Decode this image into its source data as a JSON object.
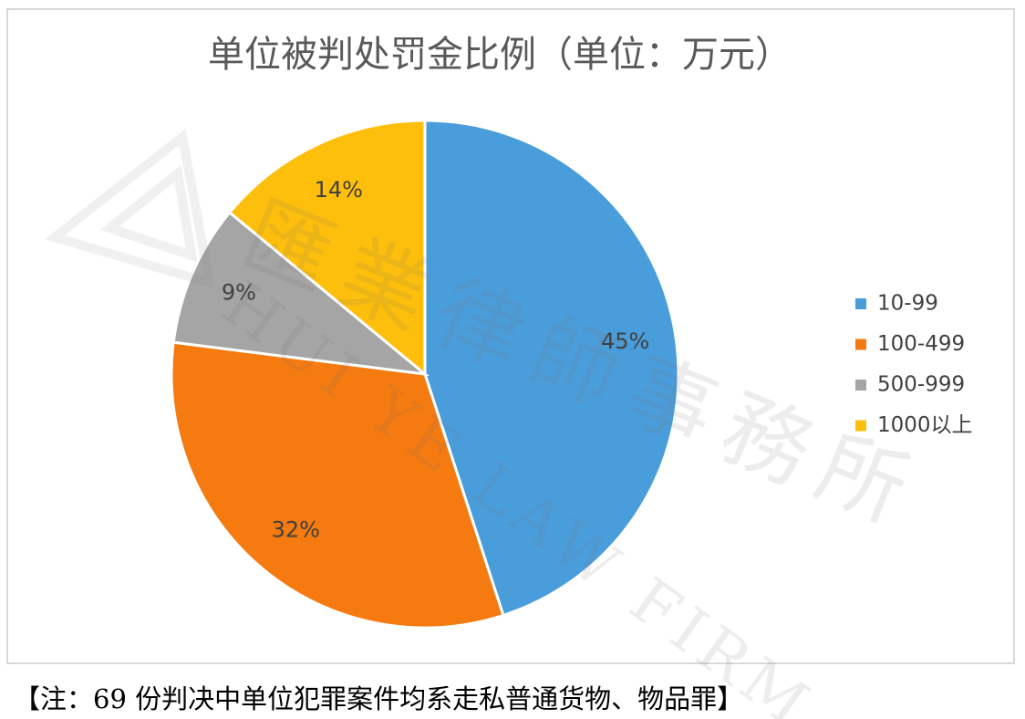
{
  "chart_data": {
    "type": "pie",
    "title": "单位被判处罚金比例（单位：万元）",
    "categories": [
      "10-99",
      "100-499",
      "500-999",
      "1000以上"
    ],
    "values": [
      45,
      32,
      9,
      14
    ],
    "value_labels": [
      "45%",
      "32%",
      "9%",
      "14%"
    ],
    "colors": [
      "#4a9ddb",
      "#f57a10",
      "#a5a5a5",
      "#fdbf0b"
    ],
    "legend": "right"
  },
  "watermark": [
    "匯業律師事務所",
    "HUI YE LAW FIRM"
  ],
  "footnote": "【注：69 份判决中单位犯罪案件均系走私普通货物、物品罪】"
}
